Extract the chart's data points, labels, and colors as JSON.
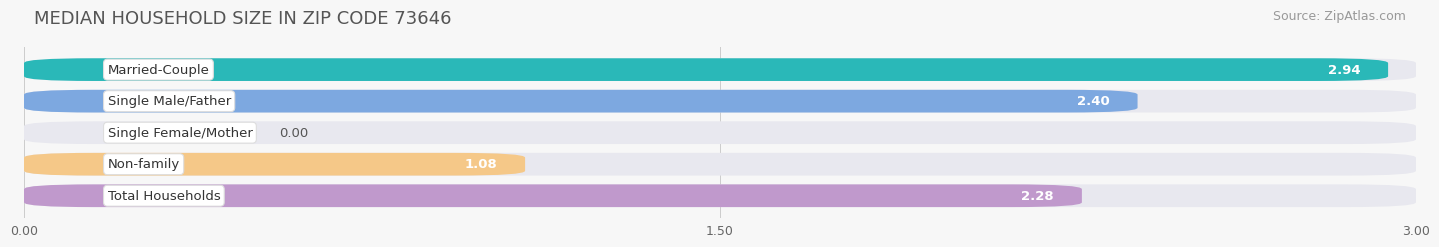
{
  "title": "MEDIAN HOUSEHOLD SIZE IN ZIP CODE 73646",
  "source": "Source: ZipAtlas.com",
  "categories": [
    "Married-Couple",
    "Single Male/Father",
    "Single Female/Mother",
    "Non-family",
    "Total Households"
  ],
  "values": [
    2.94,
    2.4,
    0.0,
    1.08,
    2.28
  ],
  "bar_colors": [
    "#2ab8b8",
    "#7da8e0",
    "#f599aa",
    "#f5c888",
    "#c099cc"
  ],
  "bar_background": "#e8e8ef",
  "xlim": [
    0,
    3.0
  ],
  "xticks": [
    0.0,
    1.5,
    3.0
  ],
  "xtick_labels": [
    "0.00",
    "1.50",
    "3.00"
  ],
  "background_color": "#f7f7f7",
  "title_fontsize": 13,
  "source_fontsize": 9,
  "label_fontsize": 9.5,
  "value_fontsize": 9.5
}
